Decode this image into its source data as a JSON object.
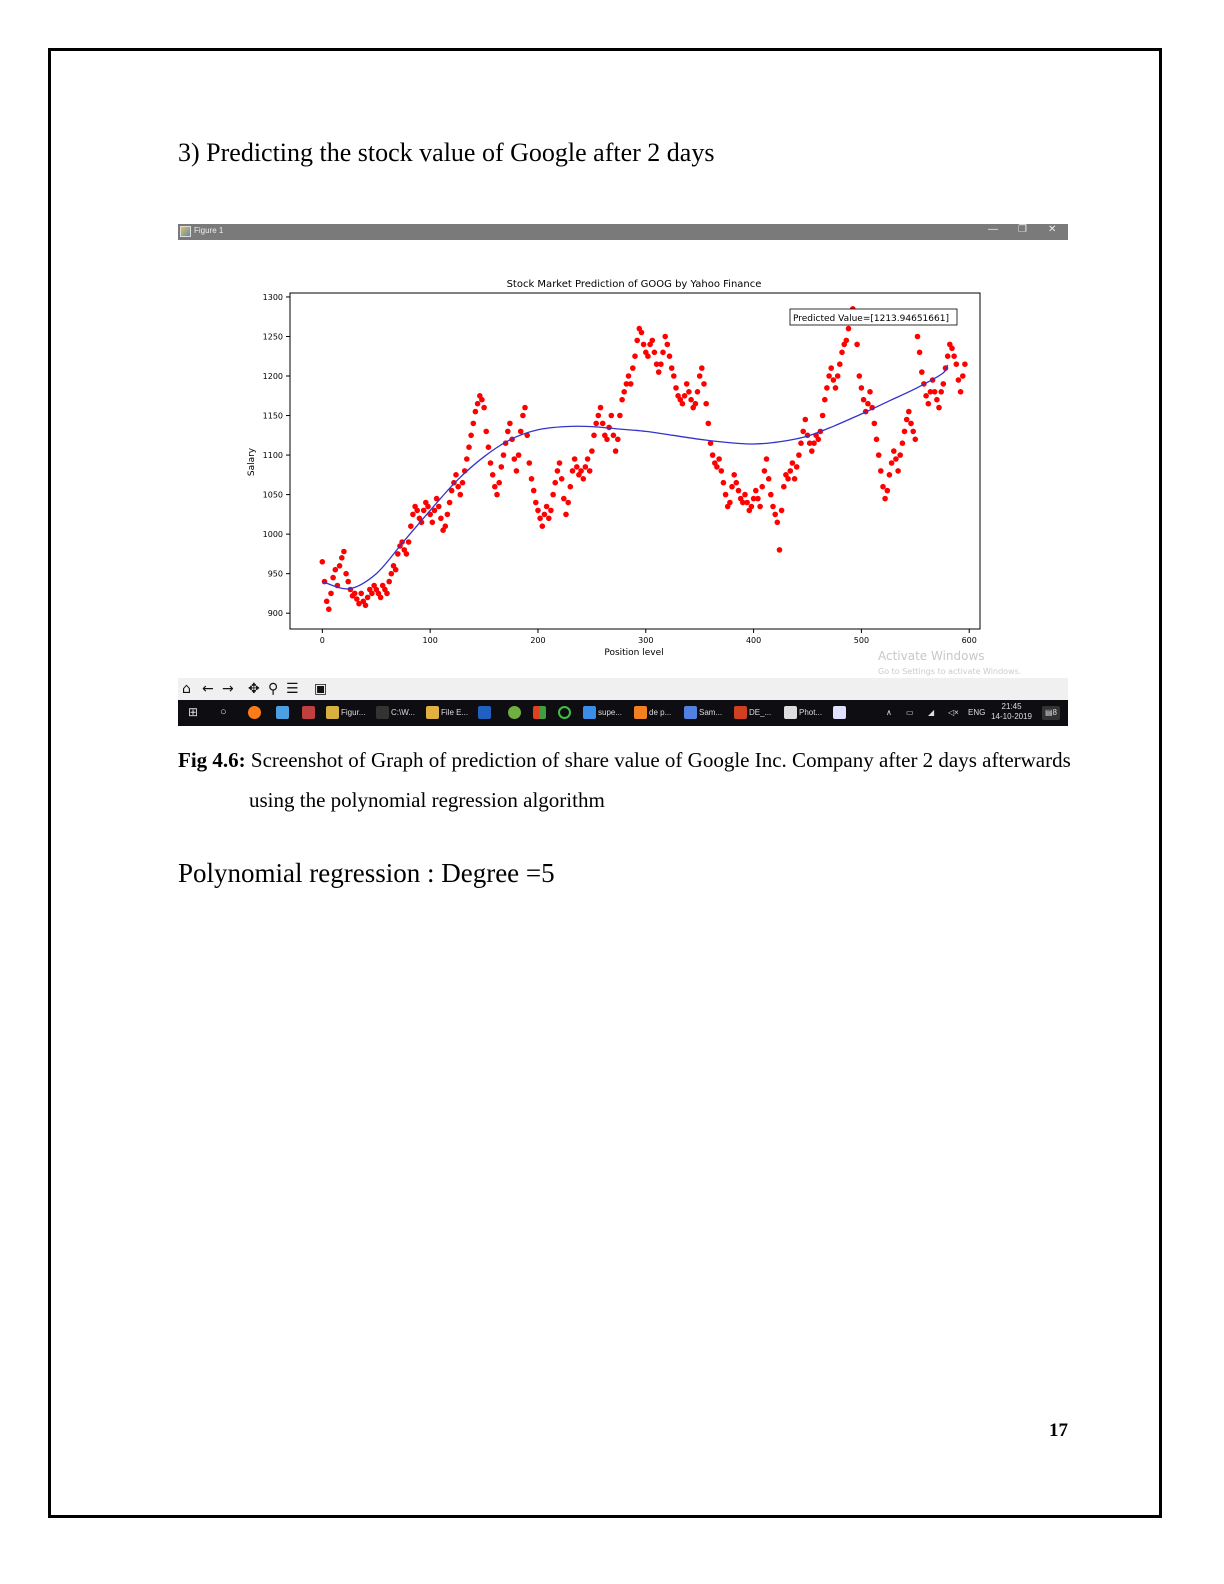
{
  "heading": "3) Predicting the stock value of Google after 2 days",
  "window": {
    "title": "Figure 1",
    "minimize_glyph": "—",
    "restore_glyph": "❐",
    "close_glyph": "✕",
    "watermark_line1": "Activate Windows",
    "watermark_line2": "Go to Settings to activate Windows."
  },
  "toolbar": {
    "icons": [
      "home-icon",
      "back-arrow-icon",
      "forward-arrow-icon",
      "pan-icon",
      "zoom-icon",
      "configure-subplots-icon",
      "save-icon"
    ]
  },
  "taskbar": {
    "items": [
      {
        "label": "Figur...",
        "icon": "python-figure-icon",
        "color": "#d8b040"
      },
      {
        "label": "C:\\W...",
        "icon": "cmd-icon",
        "color": "#333333"
      },
      {
        "label": "File E...",
        "icon": "folder-icon",
        "color": "#e0b040"
      },
      {
        "label": "supe...",
        "icon": "chrome-icon",
        "color": "#3b8ee8"
      },
      {
        "label": "de p...",
        "icon": "search-orange-icon",
        "color": "#f08020"
      },
      {
        "label": "Sam...",
        "icon": "cube-icon",
        "color": "#5080e0"
      },
      {
        "label": "DE_...",
        "icon": "powerpoint-icon",
        "color": "#d04020"
      },
      {
        "label": "Phot...",
        "icon": "photos-icon",
        "color": "#dddddd"
      }
    ],
    "language": "ENG",
    "time": "21:45",
    "date": "14-10-2019",
    "notification_count": "8"
  },
  "chart_data": {
    "type": "scatter",
    "title": "Stock Market Prediction of GOOG by Yahoo Finance",
    "xlabel": "Position level",
    "ylabel": "Salary",
    "xlim": [
      -30,
      610
    ],
    "ylim": [
      880,
      1305
    ],
    "xticks": [
      0,
      100,
      200,
      300,
      400,
      500,
      600
    ],
    "yticks": [
      900,
      950,
      1000,
      1050,
      1100,
      1150,
      1200,
      1250,
      1300
    ],
    "annotation": "Predicted Value=[1213.94651661]",
    "scatter_color": "#ff0000",
    "line_color": "#3333cc",
    "grid": false,
    "scatter_points": [
      [
        0,
        965
      ],
      [
        2,
        940
      ],
      [
        4,
        915
      ],
      [
        6,
        905
      ],
      [
        8,
        925
      ],
      [
        10,
        945
      ],
      [
        12,
        955
      ],
      [
        14,
        935
      ],
      [
        16,
        960
      ],
      [
        18,
        970
      ],
      [
        20,
        978
      ],
      [
        22,
        950
      ],
      [
        24,
        940
      ],
      [
        26,
        930
      ],
      [
        28,
        922
      ],
      [
        30,
        925
      ],
      [
        32,
        918
      ],
      [
        34,
        912
      ],
      [
        36,
        925
      ],
      [
        38,
        915
      ],
      [
        40,
        910
      ],
      [
        42,
        920
      ],
      [
        44,
        930
      ],
      [
        46,
        925
      ],
      [
        48,
        935
      ],
      [
        50,
        930
      ],
      [
        52,
        925
      ],
      [
        54,
        920
      ],
      [
        56,
        935
      ],
      [
        58,
        930
      ],
      [
        60,
        925
      ],
      [
        62,
        940
      ],
      [
        64,
        950
      ],
      [
        66,
        960
      ],
      [
        68,
        955
      ],
      [
        70,
        975
      ],
      [
        72,
        985
      ],
      [
        74,
        990
      ],
      [
        76,
        980
      ],
      [
        78,
        975
      ],
      [
        80,
        990
      ],
      [
        82,
        1010
      ],
      [
        84,
        1025
      ],
      [
        86,
        1035
      ],
      [
        88,
        1030
      ],
      [
        90,
        1020
      ],
      [
        92,
        1015
      ],
      [
        94,
        1030
      ],
      [
        96,
        1040
      ],
      [
        98,
        1035
      ],
      [
        100,
        1025
      ],
      [
        102,
        1015
      ],
      [
        104,
        1030
      ],
      [
        106,
        1045
      ],
      [
        108,
        1035
      ],
      [
        110,
        1020
      ],
      [
        112,
        1005
      ],
      [
        114,
        1010
      ],
      [
        116,
        1025
      ],
      [
        118,
        1040
      ],
      [
        120,
        1055
      ],
      [
        122,
        1065
      ],
      [
        124,
        1075
      ],
      [
        126,
        1060
      ],
      [
        128,
        1050
      ],
      [
        130,
        1065
      ],
      [
        132,
        1080
      ],
      [
        134,
        1095
      ],
      [
        136,
        1110
      ],
      [
        138,
        1125
      ],
      [
        140,
        1140
      ],
      [
        142,
        1155
      ],
      [
        144,
        1165
      ],
      [
        146,
        1175
      ],
      [
        148,
        1170
      ],
      [
        150,
        1160
      ],
      [
        152,
        1130
      ],
      [
        154,
        1110
      ],
      [
        156,
        1090
      ],
      [
        158,
        1075
      ],
      [
        160,
        1060
      ],
      [
        162,
        1050
      ],
      [
        164,
        1065
      ],
      [
        166,
        1085
      ],
      [
        168,
        1100
      ],
      [
        170,
        1115
      ],
      [
        172,
        1130
      ],
      [
        174,
        1140
      ],
      [
        176,
        1120
      ],
      [
        178,
        1095
      ],
      [
        180,
        1080
      ],
      [
        182,
        1100
      ],
      [
        184,
        1130
      ],
      [
        186,
        1150
      ],
      [
        188,
        1160
      ],
      [
        190,
        1125
      ],
      [
        192,
        1090
      ],
      [
        194,
        1070
      ],
      [
        196,
        1055
      ],
      [
        198,
        1040
      ],
      [
        200,
        1030
      ],
      [
        202,
        1020
      ],
      [
        204,
        1010
      ],
      [
        206,
        1025
      ],
      [
        208,
        1035
      ],
      [
        210,
        1020
      ],
      [
        212,
        1030
      ],
      [
        214,
        1050
      ],
      [
        216,
        1065
      ],
      [
        218,
        1080
      ],
      [
        220,
        1090
      ],
      [
        222,
        1070
      ],
      [
        224,
        1045
      ],
      [
        226,
        1025
      ],
      [
        228,
        1040
      ],
      [
        230,
        1060
      ],
      [
        232,
        1080
      ],
      [
        234,
        1095
      ],
      [
        236,
        1085
      ],
      [
        238,
        1075
      ],
      [
        240,
        1080
      ],
      [
        242,
        1070
      ],
      [
        244,
        1085
      ],
      [
        246,
        1095
      ],
      [
        248,
        1080
      ],
      [
        250,
        1105
      ],
      [
        252,
        1125
      ],
      [
        254,
        1140
      ],
      [
        256,
        1150
      ],
      [
        258,
        1160
      ],
      [
        260,
        1140
      ],
      [
        262,
        1125
      ],
      [
        264,
        1120
      ],
      [
        266,
        1135
      ],
      [
        268,
        1150
      ],
      [
        270,
        1125
      ],
      [
        272,
        1105
      ],
      [
        274,
        1120
      ],
      [
        276,
        1150
      ],
      [
        278,
        1170
      ],
      [
        280,
        1180
      ],
      [
        282,
        1190
      ],
      [
        284,
        1200
      ],
      [
        286,
        1190
      ],
      [
        288,
        1210
      ],
      [
        290,
        1225
      ],
      [
        292,
        1245
      ],
      [
        294,
        1260
      ],
      [
        296,
        1255
      ],
      [
        298,
        1240
      ],
      [
        300,
        1230
      ],
      [
        302,
        1225
      ],
      [
        304,
        1240
      ],
      [
        306,
        1245
      ],
      [
        308,
        1230
      ],
      [
        310,
        1215
      ],
      [
        312,
        1205
      ],
      [
        314,
        1215
      ],
      [
        316,
        1230
      ],
      [
        318,
        1250
      ],
      [
        320,
        1240
      ],
      [
        322,
        1225
      ],
      [
        324,
        1210
      ],
      [
        326,
        1200
      ],
      [
        328,
        1185
      ],
      [
        330,
        1175
      ],
      [
        332,
        1170
      ],
      [
        334,
        1165
      ],
      [
        336,
        1175
      ],
      [
        338,
        1190
      ],
      [
        340,
        1180
      ],
      [
        342,
        1170
      ],
      [
        344,
        1160
      ],
      [
        346,
        1165
      ],
      [
        348,
        1180
      ],
      [
        350,
        1200
      ],
      [
        352,
        1210
      ],
      [
        354,
        1190
      ],
      [
        356,
        1165
      ],
      [
        358,
        1140
      ],
      [
        360,
        1115
      ],
      [
        362,
        1100
      ],
      [
        364,
        1090
      ],
      [
        366,
        1085
      ],
      [
        368,
        1095
      ],
      [
        370,
        1080
      ],
      [
        372,
        1065
      ],
      [
        374,
        1050
      ],
      [
        376,
        1035
      ],
      [
        378,
        1040
      ],
      [
        380,
        1060
      ],
      [
        382,
        1075
      ],
      [
        384,
        1065
      ],
      [
        386,
        1055
      ],
      [
        388,
        1045
      ],
      [
        390,
        1040
      ],
      [
        392,
        1050
      ],
      [
        394,
        1040
      ],
      [
        396,
        1030
      ],
      [
        398,
        1035
      ],
      [
        400,
        1045
      ],
      [
        402,
        1055
      ],
      [
        404,
        1045
      ],
      [
        406,
        1035
      ],
      [
        408,
        1060
      ],
      [
        410,
        1080
      ],
      [
        412,
        1095
      ],
      [
        414,
        1070
      ],
      [
        416,
        1050
      ],
      [
        418,
        1035
      ],
      [
        420,
        1025
      ],
      [
        422,
        1015
      ],
      [
        424,
        980
      ],
      [
        426,
        1030
      ],
      [
        428,
        1060
      ],
      [
        430,
        1075
      ],
      [
        432,
        1070
      ],
      [
        434,
        1080
      ],
      [
        436,
        1090
      ],
      [
        438,
        1070
      ],
      [
        440,
        1085
      ],
      [
        442,
        1100
      ],
      [
        444,
        1115
      ],
      [
        446,
        1130
      ],
      [
        448,
        1145
      ],
      [
        450,
        1125
      ],
      [
        452,
        1115
      ],
      [
        454,
        1105
      ],
      [
        456,
        1115
      ],
      [
        458,
        1125
      ],
      [
        460,
        1120
      ],
      [
        462,
        1130
      ],
      [
        464,
        1150
      ],
      [
        466,
        1170
      ],
      [
        468,
        1185
      ],
      [
        470,
        1200
      ],
      [
        472,
        1210
      ],
      [
        474,
        1195
      ],
      [
        476,
        1185
      ],
      [
        478,
        1200
      ],
      [
        480,
        1215
      ],
      [
        482,
        1230
      ],
      [
        484,
        1240
      ],
      [
        486,
        1245
      ],
      [
        488,
        1260
      ],
      [
        490,
        1275
      ],
      [
        492,
        1285
      ],
      [
        494,
        1275
      ],
      [
        496,
        1240
      ],
      [
        498,
        1200
      ],
      [
        500,
        1185
      ],
      [
        502,
        1170
      ],
      [
        504,
        1155
      ],
      [
        506,
        1165
      ],
      [
        508,
        1180
      ],
      [
        510,
        1160
      ],
      [
        512,
        1140
      ],
      [
        514,
        1120
      ],
      [
        516,
        1100
      ],
      [
        518,
        1080
      ],
      [
        520,
        1060
      ],
      [
        522,
        1045
      ],
      [
        524,
        1055
      ],
      [
        526,
        1075
      ],
      [
        528,
        1090
      ],
      [
        530,
        1105
      ],
      [
        532,
        1095
      ],
      [
        534,
        1080
      ],
      [
        536,
        1100
      ],
      [
        538,
        1115
      ],
      [
        540,
        1130
      ],
      [
        542,
        1145
      ],
      [
        544,
        1155
      ],
      [
        546,
        1140
      ],
      [
        548,
        1130
      ],
      [
        550,
        1120
      ],
      [
        552,
        1250
      ],
      [
        554,
        1230
      ],
      [
        556,
        1205
      ],
      [
        558,
        1190
      ],
      [
        560,
        1175
      ],
      [
        562,
        1165
      ],
      [
        564,
        1180
      ],
      [
        566,
        1195
      ],
      [
        568,
        1180
      ],
      [
        570,
        1170
      ],
      [
        572,
        1160
      ],
      [
        574,
        1180
      ],
      [
        576,
        1190
      ],
      [
        578,
        1210
      ],
      [
        580,
        1225
      ],
      [
        582,
        1240
      ],
      [
        584,
        1235
      ],
      [
        586,
        1225
      ],
      [
        588,
        1215
      ],
      [
        590,
        1195
      ],
      [
        592,
        1180
      ],
      [
        594,
        1200
      ],
      [
        596,
        1215
      ]
    ],
    "regression_line": [
      [
        0,
        940
      ],
      [
        25,
        931
      ],
      [
        50,
        950
      ],
      [
        75,
        990
      ],
      [
        100,
        1030
      ],
      [
        125,
        1068
      ],
      [
        150,
        1098
      ],
      [
        175,
        1120
      ],
      [
        200,
        1132
      ],
      [
        225,
        1136
      ],
      [
        250,
        1136
      ],
      [
        275,
        1133
      ],
      [
        300,
        1130
      ],
      [
        325,
        1125
      ],
      [
        350,
        1120
      ],
      [
        375,
        1116
      ],
      [
        400,
        1114
      ],
      [
        425,
        1117
      ],
      [
        450,
        1124
      ],
      [
        475,
        1137
      ],
      [
        500,
        1152
      ],
      [
        525,
        1168
      ],
      [
        550,
        1184
      ],
      [
        575,
        1203
      ],
      [
        580,
        1214
      ]
    ]
  },
  "caption": {
    "label": "Fig 4.6:",
    "line1": " Screenshot of Graph of prediction of share value of Google Inc. Company after 2 days afterwards",
    "line2": "using the polynomial regression algorithm"
  },
  "body_text": "Polynomial regression : Degree =5",
  "page_number": "17"
}
